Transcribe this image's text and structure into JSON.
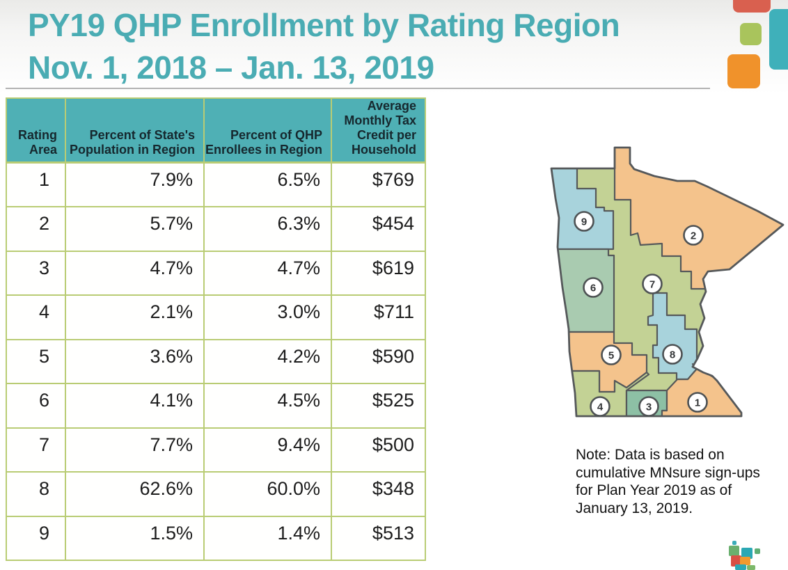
{
  "title": {
    "line1": "PY19 QHP Enrollment by Rating Region",
    "line2": "Nov. 1, 2018 – Jan. 13, 2019"
  },
  "table": {
    "headers": [
      "Rating\nArea",
      "Percent of State's\nPopulation in Region",
      "Percent of QHP\nEnrollees in Region",
      "Average\nMonthly Tax\nCredit per\nHousehold"
    ],
    "rows": [
      [
        "1",
        "7.9%",
        "6.5%",
        "$769"
      ],
      [
        "2",
        "5.7%",
        "6.3%",
        "$454"
      ],
      [
        "3",
        "4.7%",
        "4.7%",
        "$619"
      ],
      [
        "4",
        "2.1%",
        "3.0%",
        "$711"
      ],
      [
        "5",
        "3.6%",
        "4.2%",
        "$590"
      ],
      [
        "6",
        "4.1%",
        "4.5%",
        "$525"
      ],
      [
        "7",
        "7.7%",
        "9.4%",
        "$500"
      ],
      [
        "8",
        "62.6%",
        "60.0%",
        "$348"
      ],
      [
        "9",
        "1.5%",
        "1.4%",
        "$513"
      ]
    ]
  },
  "map": {
    "name": "Minnesota rating regions map",
    "regions": [
      {
        "label": "1",
        "color": "#f4c38c"
      },
      {
        "label": "2",
        "color": "#f4c38c"
      },
      {
        "label": "3",
        "color": "#8dc0a5"
      },
      {
        "label": "4",
        "color": "#c3d295"
      },
      {
        "label": "5",
        "color": "#f4c38c"
      },
      {
        "label": "6",
        "color": "#a9cbb0"
      },
      {
        "label": "7",
        "color": "#c3d295"
      },
      {
        "label": "8",
        "color": "#a8d3dc"
      },
      {
        "label": "9",
        "color": "#a8d3dc"
      }
    ]
  },
  "note": {
    "text": "Note:  Data is based on\ncumulative MNsure sign-ups\nfor Plan Year 2019 as of\nJanuary 13, 2019."
  },
  "colors": {
    "accent_teal": "#4aacb3",
    "table_header_bg": "#4fb0b5",
    "table_border": "#b9cc74",
    "map_outline": "#55585a",
    "logo_red": "#d9604f",
    "logo_green": "#a9c45c",
    "logo_orange": "#f0922b",
    "logo_teal": "#3fb0ba"
  }
}
